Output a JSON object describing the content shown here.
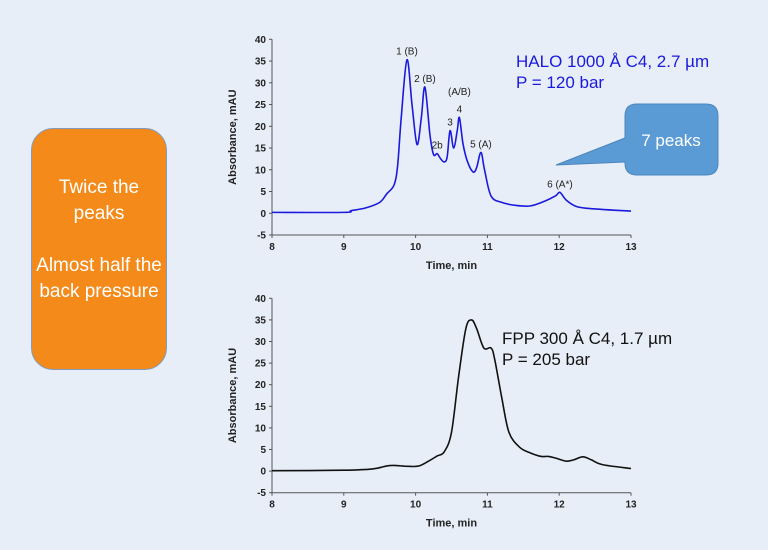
{
  "left_box": {
    "line1": "Twice the peaks",
    "line2": "Almost half the back pressure",
    "color": "#f38a1a"
  },
  "callout": {
    "text": "7 peaks",
    "color": "#5b9bd5"
  },
  "chart_data": [
    {
      "type": "line",
      "title": "",
      "xlabel": "Time, min",
      "ylabel": "Absorbance, mAU",
      "xlim": [
        8,
        13
      ],
      "ylim": [
        -5,
        40
      ],
      "xticks": [
        8,
        9,
        10,
        11,
        12,
        13
      ],
      "yticks": [
        -5,
        0,
        5,
        10,
        15,
        20,
        25,
        30,
        35,
        40
      ],
      "color": "#1a1adc",
      "legend_text": [
        "HALO 1000 Å C4, 2.7 µm",
        "P = 120 bar"
      ],
      "annotations": [
        {
          "text": "1 (B)",
          "x": 9.88,
          "y": 35.3
        },
        {
          "text": "2 (B)",
          "x": 10.13,
          "y": 29
        },
        {
          "text": "2b",
          "x": 10.3,
          "y": 13.7
        },
        {
          "text": "3",
          "x": 10.48,
          "y": 19
        },
        {
          "text": "(A/B)",
          "x": 10.61,
          "y": 26
        },
        {
          "text": "4",
          "x": 10.61,
          "y": 22
        },
        {
          "text": "5 (A)",
          "x": 10.91,
          "y": 14
        },
        {
          "text": "6 (A*)",
          "x": 12.01,
          "y": 4.8
        }
      ],
      "x": [
        8,
        9,
        9.1,
        9.3,
        9.5,
        9.6,
        9.7,
        9.75,
        9.8,
        9.88,
        9.95,
        10.02,
        10.08,
        10.13,
        10.2,
        10.25,
        10.3,
        10.35,
        10.4,
        10.44,
        10.48,
        10.53,
        10.58,
        10.61,
        10.66,
        10.72,
        10.8,
        10.85,
        10.91,
        10.96,
        11.05,
        11.2,
        11.4,
        11.6,
        11.8,
        11.95,
        12.01,
        12.1,
        12.25,
        12.5,
        13
      ],
      "y": [
        0.2,
        0.2,
        0.6,
        1.2,
        2.5,
        4.5,
        6.5,
        11,
        22,
        35.3,
        25,
        15.8,
        22,
        29,
        18,
        13.5,
        13.7,
        12.5,
        11.8,
        13,
        19,
        15,
        19,
        22,
        16,
        12,
        9.5,
        10.5,
        14,
        10,
        4,
        2.5,
        1.8,
        1.7,
        2.8,
        4,
        4.8,
        3,
        1.5,
        1,
        0.5
      ]
    },
    {
      "type": "line",
      "title": "",
      "xlabel": "Time, min",
      "ylabel": "Absorbance, mAU",
      "xlim": [
        8,
        13
      ],
      "ylim": [
        -5,
        40
      ],
      "xticks": [
        8,
        9,
        10,
        11,
        12,
        13
      ],
      "yticks": [
        -5,
        0,
        5,
        10,
        15,
        20,
        25,
        30,
        35,
        40
      ],
      "color": "#111111",
      "legend_text": [
        "FPP 300 Å C4, 1.7 µm",
        "P = 205 bar"
      ],
      "annotations": [],
      "x": [
        8,
        9,
        9.4,
        9.6,
        9.7,
        9.9,
        10.05,
        10.2,
        10.3,
        10.4,
        10.5,
        10.6,
        10.7,
        10.78,
        10.85,
        10.95,
        11.05,
        11.1,
        11.2,
        11.3,
        11.45,
        11.6,
        11.75,
        11.85,
        11.95,
        12.1,
        12.2,
        12.33,
        12.45,
        12.6,
        13
      ],
      "y": [
        0.1,
        0.2,
        0.5,
        1.2,
        1.3,
        1.1,
        1.2,
        2.5,
        3.5,
        4.5,
        9,
        22,
        33,
        35,
        33,
        28.5,
        28.5,
        26,
        17,
        9,
        5.5,
        4.2,
        3.4,
        3.4,
        3,
        2.3,
        2.6,
        3.3,
        2.6,
        1.5,
        0.6
      ]
    }
  ]
}
